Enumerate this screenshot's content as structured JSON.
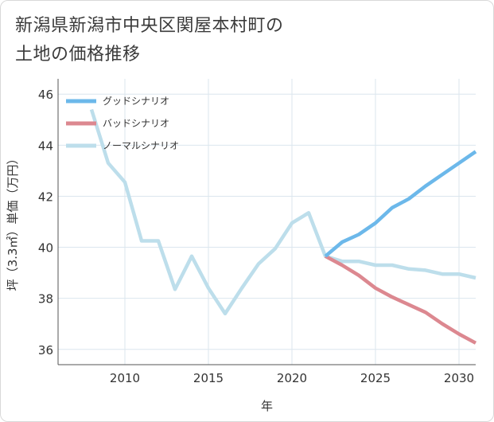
{
  "title": "新潟県新潟市中央区関屋本村町の\n土地の価格推移",
  "chart_data": {
    "type": "line",
    "title": "新潟県新潟市中央区関屋本村町の土地の価格推移",
    "xlabel": "年",
    "ylabel": "坪（3.3㎡）単価（万円）",
    "xlim": [
      2006,
      2031
    ],
    "ylim": [
      35.4,
      46.6
    ],
    "xticks": [
      2010,
      2015,
      2020,
      2025,
      2030
    ],
    "yticks": [
      36,
      38,
      40,
      42,
      44,
      46
    ],
    "grid": true,
    "legend_position": "top-left",
    "series": [
      {
        "name": "グッドシナリオ",
        "color": "#6cb8ea",
        "x": [
          2022,
          2023,
          2024,
          2025,
          2026,
          2027,
          2028,
          2029,
          2030,
          2031
        ],
        "y": [
          39.65,
          40.2,
          40.5,
          40.95,
          41.55,
          41.9,
          42.4,
          42.85,
          43.3,
          43.75
        ]
      },
      {
        "name": "バッドシナリオ",
        "color": "#dc8890",
        "x": [
          2022,
          2023,
          2024,
          2025,
          2026,
          2027,
          2028,
          2029,
          2030,
          2031
        ],
        "y": [
          39.65,
          39.3,
          38.9,
          38.4,
          38.05,
          37.75,
          37.45,
          37.0,
          36.6,
          36.25
        ]
      },
      {
        "name": "ノーマルシナリオ",
        "color": "#bddeeb",
        "x": [
          2008,
          2009,
          2010,
          2011,
          2012,
          2013,
          2014,
          2015,
          2016,
          2017,
          2018,
          2019,
          2020,
          2021,
          2022,
          2023,
          2024,
          2025,
          2026,
          2027,
          2028,
          2029,
          2030,
          2031
        ],
        "y": [
          45.4,
          43.3,
          42.55,
          40.25,
          40.25,
          38.35,
          39.65,
          38.4,
          37.4,
          38.4,
          39.35,
          39.95,
          40.95,
          41.35,
          39.65,
          39.45,
          39.45,
          39.3,
          39.3,
          39.15,
          39.1,
          38.95,
          38.95,
          38.8
        ]
      }
    ]
  }
}
